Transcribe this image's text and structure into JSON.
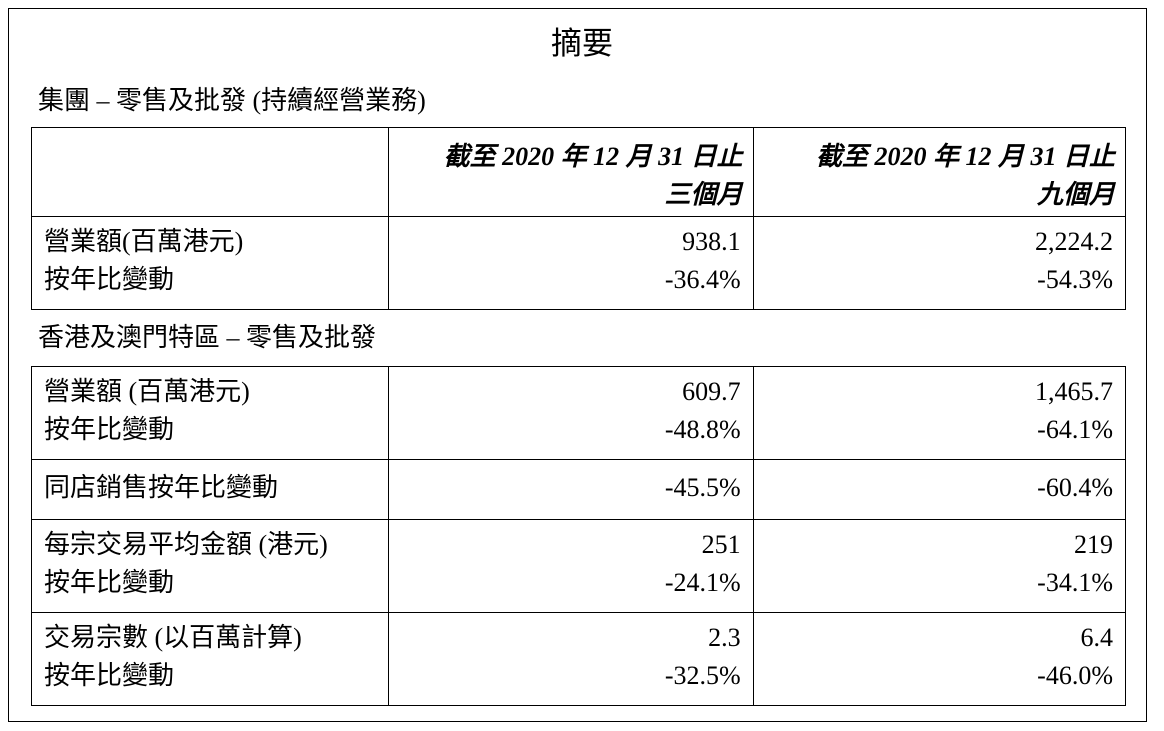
{
  "title": "摘要",
  "section1": {
    "heading": "集團 – 零售及批發 (持續經營業務)",
    "header": {
      "col_a_line1": "截至 2020 年 12 月 31 日止",
      "col_a_line2": "三個月",
      "col_b_line1": "截至 2020 年 12 月 31 日止",
      "col_b_line2": "九個月"
    },
    "rows": [
      {
        "label_line1": "營業額(百萬港元)",
        "label_line2": "按年比變動",
        "a_line1": "938.1",
        "a_line2": "-36.4%",
        "b_line1": "2,224.2",
        "b_line2": "-54.3%"
      }
    ]
  },
  "section2": {
    "heading": "香港及澳門特區 – 零售及批發",
    "rows": [
      {
        "label_line1": "營業額 (百萬港元)",
        "label_line2": "按年比變動",
        "a_line1": "609.7",
        "a_line2": "-48.8%",
        "b_line1": "1,465.7",
        "b_line2": "-64.1%"
      },
      {
        "label_line1": "同店銷售按年比變動",
        "a_line1": "-45.5%",
        "b_line1": "-60.4%"
      },
      {
        "label_line1": "每宗交易平均金額 (港元)",
        "label_line2": "按年比變動",
        "a_line1": "251",
        "a_line2": "-24.1%",
        "b_line1": "219",
        "b_line2": "-34.1%"
      },
      {
        "label_line1": "交易宗數 (以百萬計算)",
        "label_line2": "按年比變動",
        "a_line1": "2.3",
        "a_line2": "-32.5%",
        "b_line1": "6.4",
        "b_line2": "-46.0%"
      }
    ]
  }
}
